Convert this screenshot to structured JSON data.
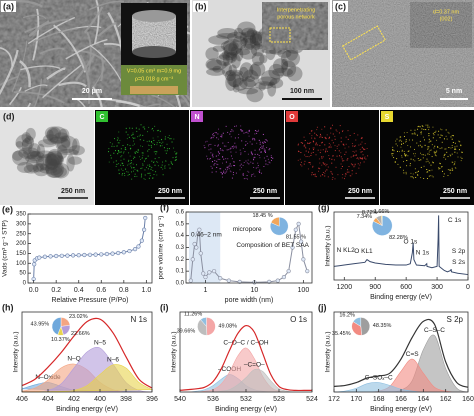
{
  "images": {
    "a": {
      "label": "(a)",
      "scale_bar": "20 μm",
      "inset_text": [
        "V=0.05 cm³  m=0.9 mg",
        "ρ=0.018 g cm⁻³"
      ]
    },
    "b": {
      "label": "(b)",
      "scale_bar": "100 nm",
      "inset_text": [
        "Interpenetrating",
        "porous network"
      ]
    },
    "c": {
      "label": "(c)",
      "scale_bar": "5 nm",
      "inset_text": [
        "d=0.37 nm",
        "(002)"
      ]
    },
    "d": {
      "label": "(d)",
      "scale_bar": "250 nm",
      "maps": [
        "C",
        "N",
        "O",
        "S"
      ]
    }
  },
  "chart_data": [
    {
      "type": "line",
      "panel": "(e)",
      "x_label": "Relative Pressure (P/Po)",
      "y_label": "Vads (cm³ g⁻¹ STP)",
      "x": [
        0.0,
        0.005,
        0.01,
        0.03,
        0.05,
        0.1,
        0.15,
        0.2,
        0.25,
        0.3,
        0.35,
        0.4,
        0.45,
        0.5,
        0.55,
        0.6,
        0.65,
        0.7,
        0.75,
        0.8,
        0.85,
        0.9,
        0.93,
        0.96,
        0.98,
        0.99
      ],
      "series": [
        {
          "color": "#6a7fa8",
          "values": [
            20,
            95,
            115,
            125,
            129,
            133,
            135,
            137,
            138,
            139,
            140,
            141,
            142,
            143,
            144,
            145,
            147,
            149,
            152,
            156,
            162,
            172,
            185,
            215,
            270,
            330
          ]
        }
      ],
      "markers": true,
      "xlim": [
        -0.05,
        1.05
      ],
      "ylim": [
        0,
        350
      ],
      "xticks": [
        {
          "value": 0,
          "label": "0.0"
        },
        0.2,
        0.4,
        0.6,
        0.8,
        {
          "value": 1,
          "label": "1.0"
        }
      ],
      "yticks": [
        0,
        50,
        100,
        150,
        200,
        250,
        300,
        350
      ]
    },
    {
      "type": "line",
      "panel": "(f)",
      "x_label": "pore width (nm)",
      "y_label": "pore volume (cm³ g⁻¹)",
      "xscale": "log",
      "x": [
        0.5,
        0.55,
        0.6,
        0.65,
        0.7,
        0.75,
        0.8,
        0.9,
        1,
        1.2,
        1.5,
        2,
        3,
        5,
        10,
        20,
        30,
        40,
        50,
        60,
        70,
        80,
        90,
        100,
        120
      ],
      "series": [
        {
          "color": "#8a8fa0",
          "values": [
            0.02,
            0.2,
            0.33,
            0.3,
            0.42,
            0.45,
            0.25,
            0.08,
            0.05,
            0.09,
            0.1,
            0.04,
            0.02,
            0.01,
            0.005,
            0.01,
            0.02,
            0.05,
            0.1,
            0.3,
            0.45,
            0.5,
            0.35,
            0.2,
            0.1
          ]
        }
      ],
      "markers": true,
      "xlim": [
        0.4,
        150
      ],
      "ylim": [
        0,
        0.6
      ],
      "xticks": [
        1,
        10,
        100
      ],
      "yticks": [
        {
          "value": 0,
          "label": "0.0"
        },
        0.1,
        0.2,
        0.3,
        0.4,
        0.5,
        0.6
      ],
      "shade_x": [
        0.46,
        2
      ],
      "shade_color": "#dde8f5",
      "annotations": [
        "0.46–2 nm",
        "micropore",
        "Composition of BET SAA"
      ],
      "pie": {
        "values": [
          81.55,
          18.45
        ],
        "value_labels": [
          "81.55 %",
          "18.45 %"
        ],
        "colors": [
          "#7fb3e0",
          "#f2a65a"
        ]
      }
    },
    {
      "type": "line",
      "panel": "(g)",
      "x_label": "Binding energy (eV)",
      "y_label": "Intensity (a.u.)",
      "x": [
        1300,
        1250,
        1200,
        1100,
        1000,
        980,
        950,
        900,
        800,
        700,
        600,
        560,
        540,
        532,
        525,
        500,
        420,
        400,
        398,
        350,
        300,
        290,
        285,
        280,
        230,
        200,
        168,
        164,
        160,
        100,
        0
      ],
      "series": [
        {
          "color": "#3a4a6b",
          "values": [
            20,
            21,
            22,
            24,
            26,
            30,
            27,
            25,
            23,
            22,
            22,
            24,
            40,
            55,
            30,
            22,
            21,
            24,
            20,
            18,
            20,
            60,
            95,
            20,
            14,
            12,
            14,
            16,
            12,
            10,
            8
          ]
        }
      ],
      "xlim": [
        1300,
        0
      ],
      "ylim": [
        0,
        100
      ],
      "xticks": [
        1200,
        900,
        600,
        300,
        0
      ],
      "annotations": [
        "C 1s",
        "O 1s",
        "N 1s",
        "S 2p",
        "S 2s",
        "N KL2",
        "O KL1"
      ],
      "pie": {
        "values": [
          82.28,
          7.34,
          8.72,
          1.66
        ],
        "value_labels": [
          "82.28%",
          "7.34%",
          "8.72%",
          "1.66%"
        ],
        "colors": [
          "#7fb3e0",
          "#f2a65a",
          "#b0b0b0",
          "#f7d154"
        ]
      }
    },
    {
      "type": "area",
      "panel": "(h)",
      "title": "N 1s",
      "x_label": "Binding energy (eV)",
      "y_label": "Intensity (a.u.)",
      "x": [
        406,
        405,
        404,
        403,
        402,
        401,
        400,
        399,
        398,
        397,
        396
      ],
      "series": [
        {
          "color": "#d62728",
          "values": [
            8,
            16,
            31,
            49,
            70,
            88,
            91,
            74,
            44,
            16,
            5
          ]
        },
        {
          "name": "N–Oxide",
          "color": "#6fa8dc",
          "values": [
            4,
            9,
            12,
            7,
            2,
            0,
            0,
            0,
            0,
            0,
            0
          ]
        },
        {
          "name": "N–Q",
          "color": "#f4a582",
          "values": [
            1,
            5,
            15,
            30,
            35,
            28,
            12,
            3,
            0,
            0,
            0
          ]
        },
        {
          "name": "N–5",
          "color": "#b39ddb",
          "values": [
            0,
            0,
            2,
            10,
            30,
            50,
            55,
            35,
            12,
            2,
            0
          ]
        },
        {
          "name": "N–6",
          "color": "#e8d44d",
          "values": [
            0,
            0,
            0,
            0,
            2,
            8,
            22,
            34,
            30,
            12,
            3
          ]
        }
      ],
      "xlim": [
        406,
        396
      ],
      "ylim": [
        0,
        100
      ],
      "xticks": [
        406,
        404,
        402,
        400,
        398,
        396
      ],
      "pie": {
        "values": [
          23.02,
          22.66,
          10.37,
          43.95
        ],
        "value_labels": [
          "23.02%",
          "22.66%",
          "10.37%",
          "43.95%"
        ],
        "colors": [
          "#f4a582",
          "#b39ddb",
          "#e8d44d",
          "#6fa8dc"
        ]
      }
    },
    {
      "type": "area",
      "panel": "(i)",
      "title": "O 1s",
      "x_label": "Binding energy (eV)",
      "y_label": "Intensity (a.u.)",
      "x": [
        540,
        539,
        538,
        537,
        536,
        535,
        534,
        533,
        532,
        531,
        530,
        529,
        528,
        527,
        526,
        525,
        524
      ],
      "series": [
        {
          "color": "#d62728",
          "values": [
            2,
            3,
            4,
            6,
            13,
            29,
            52,
            73,
            83,
            75,
            49,
            22,
            7,
            3,
            2,
            2,
            2
          ]
        },
        {
          "name": "–COOH",
          "color": "#8fbfe0",
          "values": [
            0,
            0,
            1,
            3,
            8,
            16,
            22,
            17,
            8,
            3,
            1,
            0,
            0,
            0,
            0,
            0,
            0
          ]
        },
        {
          "name": "C–O–C / C–OH",
          "color": "#f4a6a6",
          "values": [
            0,
            0,
            0,
            1,
            3,
            10,
            25,
            45,
            55,
            42,
            20,
            6,
            1,
            0,
            0,
            0,
            0
          ]
        },
        {
          "name": "–C=O–",
          "color": "#bdbdbd",
          "values": [
            0,
            0,
            0,
            0,
            0,
            1,
            3,
            9,
            18,
            28,
            26,
            14,
            4,
            1,
            0,
            0,
            0
          ]
        }
      ],
      "xlim": [
        540,
        524
      ],
      "ylim": [
        0,
        100
      ],
      "xticks": [
        540,
        536,
        532,
        528,
        524
      ],
      "pie": {
        "values": [
          49.08,
          39.66,
          11.26
        ],
        "value_labels": [
          "49.08%",
          "39.66%",
          "11.26%"
        ],
        "colors": [
          "#f4a6a6",
          "#bdbdbd",
          "#8fbfe0"
        ]
      }
    },
    {
      "type": "area",
      "panel": "(j)",
      "title": "S 2p",
      "x_label": "Binding energy (eV)",
      "y_label": "Intensity (a.u.)",
      "x": [
        172,
        171,
        170,
        169,
        168,
        167,
        166,
        165,
        164,
        163,
        162,
        161,
        160
      ],
      "series": [
        {
          "color": "#333333",
          "values": [
            6,
            7,
            10,
            15,
            17,
            20,
            35,
            58,
            75,
            72,
            32,
            10,
            5
          ]
        },
        {
          "name": "C–S–C",
          "color": "#9e9e9e",
          "values": [
            0,
            0,
            0,
            0,
            0,
            0,
            2,
            12,
            45,
            60,
            25,
            4,
            0
          ]
        },
        {
          "name": "C=S",
          "color": "#f28b82",
          "values": [
            0,
            0,
            0,
            0,
            1,
            6,
            22,
            35,
            20,
            5,
            1,
            0,
            0
          ]
        },
        {
          "name": "C–SOₓ–C",
          "color": "#8fbfe0",
          "values": [
            0,
            1,
            4,
            9,
            10,
            7,
            3,
            1,
            0,
            0,
            0,
            0,
            0
          ]
        }
      ],
      "xlim": [
        172,
        160
      ],
      "ylim": [
        0,
        85
      ],
      "xticks": [
        172,
        170,
        168,
        166,
        164,
        162,
        160
      ],
      "pie": {
        "values": [
          48.35,
          35.45,
          16.2
        ],
        "value_labels": [
          "48.35%",
          "35.45%",
          "16.2%"
        ],
        "colors": [
          "#9e9e9e",
          "#f28b82",
          "#8fbfe0"
        ]
      }
    }
  ]
}
